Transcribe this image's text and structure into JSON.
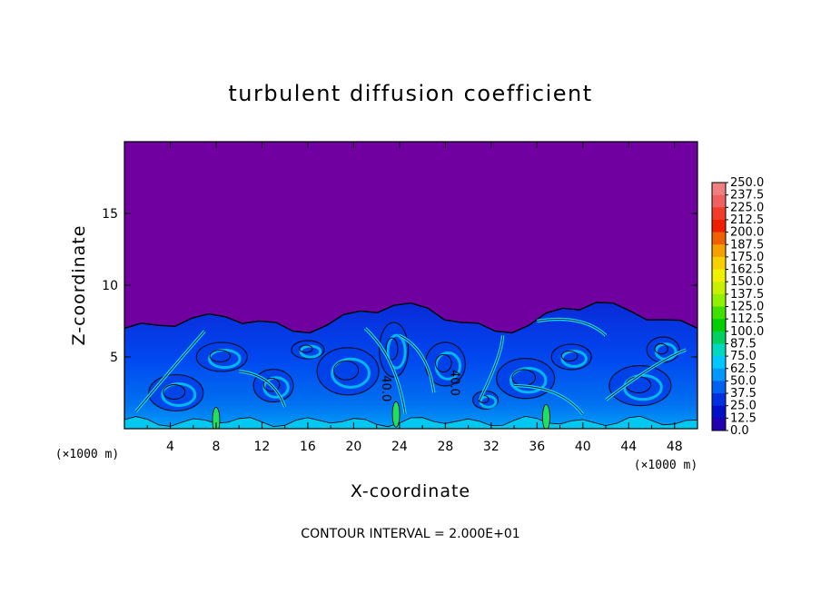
{
  "chart_data": {
    "type": "heatmap",
    "title": "turbulent diffusion coefficient",
    "xlabel": "X-coordinate",
    "ylabel": "Z-coordinate",
    "x_unit": "(×1000 m)",
    "x_unit_right": "(×1000 m)",
    "xlim": [
      0,
      50
    ],
    "ylim": [
      0,
      20
    ],
    "x_ticks": [
      "4",
      "8",
      "12",
      "16",
      "20",
      "24",
      "28",
      "32",
      "36",
      "40",
      "44",
      "48"
    ],
    "y_ticks": [
      "5",
      "10",
      "15"
    ],
    "colorbar": {
      "labels": [
        "250.0",
        "237.5",
        "225.0",
        "212.5",
        "200.0",
        "187.5",
        "175.0",
        "162.5",
        "150.0",
        "137.5",
        "125.0",
        "112.5",
        "100.0",
        "87.5",
        "75.0",
        "62.5",
        "50.0",
        "37.5",
        "25.0",
        "12.5",
        "0.0"
      ],
      "colors": [
        "#f08080",
        "#f06060",
        "#f03c28",
        "#f01e00",
        "#f06000",
        "#f5a000",
        "#f8d000",
        "#f0f000",
        "#c8f000",
        "#90f000",
        "#40e000",
        "#00d000",
        "#00d060",
        "#00d8c0",
        "#00c8ff",
        "#0098ff",
        "#0060f0",
        "#0030e0",
        "#0010c8",
        "#2000b0",
        "#7000a0"
      ]
    },
    "contour_labels": [
      "40.0",
      "40.0"
    ],
    "boundary_layer_top_km": [
      7.0,
      7.2,
      7.7,
      7.8,
      7.5,
      6.8,
      7.2,
      8.2,
      8.6,
      8.4,
      7.4,
      6.8,
      7.2,
      8.4,
      8.8,
      8.2,
      7.6,
      7.0
    ],
    "footer": "CONTOUR INTERVAL = 2.000E+01"
  }
}
